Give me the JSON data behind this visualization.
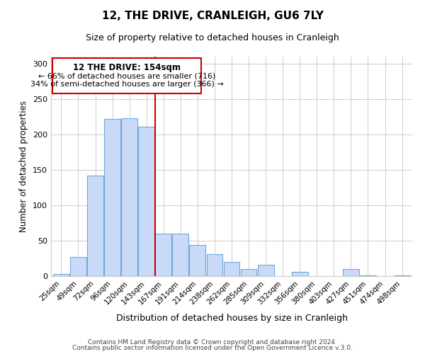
{
  "title": "12, THE DRIVE, CRANLEIGH, GU6 7LY",
  "subtitle": "Size of property relative to detached houses in Cranleigh",
  "xlabel": "Distribution of detached houses by size in Cranleigh",
  "ylabel": "Number of detached properties",
  "categories": [
    "25sqm",
    "49sqm",
    "72sqm",
    "96sqm",
    "120sqm",
    "143sqm",
    "167sqm",
    "191sqm",
    "214sqm",
    "238sqm",
    "262sqm",
    "285sqm",
    "309sqm",
    "332sqm",
    "356sqm",
    "380sqm",
    "403sqm",
    "427sqm",
    "451sqm",
    "474sqm",
    "498sqm"
  ],
  "values": [
    3,
    27,
    142,
    222,
    223,
    211,
    60,
    60,
    44,
    31,
    20,
    10,
    16,
    0,
    6,
    0,
    0,
    10,
    1,
    0,
    1
  ],
  "bar_color": "#c9daf8",
  "bar_edge_color": "#6fa8dc",
  "vline_color": "#cc0000",
  "annotation_title": "12 THE DRIVE: 154sqm",
  "annotation_line1": "← 66% of detached houses are smaller (716)",
  "annotation_line2": "34% of semi-detached houses are larger (366) →",
  "annotation_box_color": "#cc0000",
  "ylim": [
    0,
    310
  ],
  "yticks": [
    0,
    50,
    100,
    150,
    200,
    250,
    300
  ],
  "footer1": "Contains HM Land Registry data © Crown copyright and database right 2024.",
  "footer2": "Contains public sector information licensed under the Open Government Licence v.3.0.",
  "background_color": "#ffffff",
  "grid_color": "#cccccc"
}
